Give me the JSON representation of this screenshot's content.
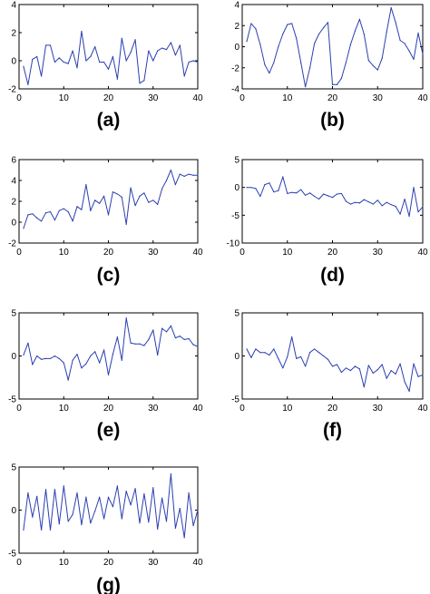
{
  "figure": {
    "line_color": "#2b3fb0",
    "frame_color": "#000000",
    "background": "#ffffff"
  },
  "chart_data": [
    {
      "type": "line",
      "caption": "(a)",
      "x": [
        1,
        2,
        3,
        4,
        5,
        6,
        7,
        8,
        9,
        10,
        11,
        12,
        13,
        14,
        15,
        16,
        17,
        18,
        19,
        20,
        21,
        22,
        23,
        24,
        25,
        26,
        27,
        28,
        29,
        30,
        31,
        32,
        33,
        34,
        35,
        36,
        37,
        38,
        39,
        40
      ],
      "y": [
        -0.4,
        -1.7,
        0.1,
        0.3,
        -1.1,
        1.1,
        1.1,
        -0.1,
        0.2,
        -0.1,
        -0.2,
        0.7,
        -0.5,
        2.1,
        0.0,
        0.3,
        1.0,
        -0.1,
        -0.1,
        -0.6,
        0.3,
        -1.3,
        1.6,
        0.0,
        0.6,
        1.5,
        -1.6,
        -1.4,
        0.7,
        0.0,
        0.7,
        0.9,
        0.8,
        1.3,
        0.4,
        1.1,
        -1.1,
        -0.1,
        0.0,
        -0.1
      ],
      "xlim": [
        0,
        40
      ],
      "ylim": [
        -2,
        4
      ],
      "xticks": [
        "0",
        "10",
        "20",
        "30",
        "40"
      ],
      "yticks": [
        "-2",
        "0",
        "2",
        "4"
      ]
    },
    {
      "type": "line",
      "caption": "(b)",
      "x": [
        1,
        2,
        3,
        4,
        5,
        6,
        7,
        8,
        9,
        10,
        11,
        12,
        13,
        14,
        15,
        16,
        17,
        18,
        19,
        20,
        21,
        22,
        23,
        24,
        25,
        26,
        27,
        28,
        29,
        30,
        31,
        32,
        33,
        34,
        35,
        36,
        37,
        38,
        39,
        40
      ],
      "y": [
        0.5,
        2.2,
        1.7,
        0.2,
        -1.7,
        -2.5,
        -1.5,
        0.0,
        1.2,
        2.1,
        2.2,
        0.8,
        -1.5,
        -3.8,
        -2.0,
        0.3,
        1.2,
        1.8,
        2.3,
        -3.6,
        -3.6,
        -3.0,
        -1.5,
        0.2,
        1.5,
        2.6,
        1.2,
        -1.3,
        -1.8,
        -2.2,
        -1.1,
        1.4,
        3.7,
        2.3,
        0.6,
        0.3,
        -0.4,
        -1.2,
        1.3,
        -0.7
      ],
      "xlim": [
        0,
        40
      ],
      "ylim": [
        -4,
        4
      ],
      "xticks": [
        "0",
        "10",
        "20",
        "30",
        "40"
      ],
      "yticks": [
        "-4",
        "-2",
        "0",
        "2",
        "4"
      ]
    },
    {
      "type": "line",
      "caption": "(c)",
      "x": [
        1,
        2,
        3,
        4,
        5,
        6,
        7,
        8,
        9,
        10,
        11,
        12,
        13,
        14,
        15,
        16,
        17,
        18,
        19,
        20,
        21,
        22,
        23,
        24,
        25,
        26,
        27,
        28,
        29,
        30,
        31,
        32,
        33,
        34,
        35,
        36,
        37,
        38,
        39,
        40
      ],
      "y": [
        -0.6,
        0.7,
        0.8,
        0.4,
        0.1,
        0.9,
        1.0,
        0.2,
        1.1,
        1.3,
        1.0,
        0.1,
        1.5,
        1.2,
        3.6,
        1.1,
        2.1,
        1.8,
        2.5,
        0.7,
        2.9,
        2.7,
        2.4,
        -0.2,
        3.3,
        1.6,
        2.5,
        2.8,
        1.9,
        2.1,
        1.7,
        3.2,
        4.0,
        5.0,
        3.6,
        4.6,
        4.4,
        4.6,
        4.5,
        4.5
      ],
      "xlim": [
        0,
        40
      ],
      "ylim": [
        -2,
        6
      ],
      "xticks": [
        "0",
        "10",
        "20",
        "30",
        "40"
      ],
      "yticks": [
        "-2",
        "0",
        "2",
        "4",
        "6"
      ]
    },
    {
      "type": "line",
      "caption": "(d)",
      "x": [
        1,
        2,
        3,
        4,
        5,
        6,
        7,
        8,
        9,
        10,
        11,
        12,
        13,
        14,
        15,
        16,
        17,
        18,
        19,
        20,
        21,
        22,
        23,
        24,
        25,
        26,
        27,
        28,
        29,
        30,
        31,
        32,
        33,
        34,
        35,
        36,
        37,
        38,
        39,
        40
      ],
      "y": [
        0.0,
        0.0,
        -0.2,
        -1.6,
        0.5,
        0.8,
        -0.8,
        -0.6,
        1.9,
        -1.1,
        -0.9,
        -1.0,
        -0.4,
        -1.4,
        -1.0,
        -1.6,
        -2.1,
        -1.2,
        -1.5,
        -1.8,
        -1.2,
        -1.1,
        -2.5,
        -3.0,
        -2.7,
        -2.8,
        -2.2,
        -2.6,
        -3.0,
        -2.3,
        -3.3,
        -2.7,
        -3.1,
        -3.4,
        -4.8,
        -2.1,
        -5.2,
        0.0,
        -4.4,
        -3.5
      ],
      "xlim": [
        0,
        40
      ],
      "ylim": [
        -10,
        5
      ],
      "xticks": [
        "0",
        "10",
        "20",
        "30",
        "40"
      ],
      "yticks": [
        "-10",
        "-5",
        "0",
        "5"
      ]
    },
    {
      "type": "line",
      "caption": "(e)",
      "x": [
        1,
        2,
        3,
        4,
        5,
        6,
        7,
        8,
        9,
        10,
        11,
        12,
        13,
        14,
        15,
        16,
        17,
        18,
        19,
        20,
        21,
        22,
        23,
        24,
        25,
        26,
        27,
        28,
        29,
        30,
        31,
        32,
        33,
        34,
        35,
        36,
        37,
        38,
        39,
        40
      ],
      "y": [
        0.1,
        1.5,
        -1.0,
        0.0,
        -0.4,
        -0.3,
        -0.3,
        0.0,
        -0.3,
        -0.8,
        -2.8,
        -0.5,
        0.2,
        -1.4,
        -0.9,
        0.0,
        0.5,
        -0.8,
        0.7,
        -2.2,
        0.2,
        2.2,
        -0.5,
        4.4,
        1.5,
        1.4,
        1.4,
        1.2,
        1.9,
        3.0,
        0.1,
        3.2,
        2.8,
        3.5,
        2.1,
        2.3,
        1.9,
        2.0,
        1.3,
        1.1
      ],
      "xlim": [
        0,
        40
      ],
      "ylim": [
        -5,
        5
      ],
      "xticks": [
        "0",
        "10",
        "20",
        "30",
        "40"
      ],
      "yticks": [
        "-5",
        "0",
        "5"
      ]
    },
    {
      "type": "line",
      "caption": "(f)",
      "x": [
        1,
        2,
        3,
        4,
        5,
        6,
        7,
        8,
        9,
        10,
        11,
        12,
        13,
        14,
        15,
        16,
        17,
        18,
        19,
        20,
        21,
        22,
        23,
        24,
        25,
        26,
        27,
        28,
        29,
        30,
        31,
        32,
        33,
        34,
        35,
        36,
        37,
        38,
        39,
        40
      ],
      "y": [
        0.8,
        -0.2,
        0.8,
        0.4,
        0.4,
        0.1,
        0.8,
        -0.3,
        -1.4,
        -0.1,
        2.2,
        -0.3,
        -0.1,
        -1.2,
        0.4,
        0.8,
        0.4,
        0.0,
        -0.4,
        -1.2,
        -1.0,
        -1.9,
        -1.4,
        -1.7,
        -1.2,
        -1.5,
        -3.6,
        -1.1,
        -2.0,
        -1.6,
        -1.0,
        -2.6,
        -1.7,
        -2.1,
        -0.9,
        -3.0,
        -4.1,
        -0.9,
        -2.4,
        -2.2
      ],
      "xlim": [
        0,
        40
      ],
      "ylim": [
        -5,
        5
      ],
      "xticks": [
        "0",
        "10",
        "20",
        "30",
        "40"
      ],
      "yticks": [
        "-5",
        "0",
        "5"
      ]
    },
    {
      "type": "line",
      "caption": "(g)",
      "x": [
        1,
        2,
        3,
        4,
        5,
        6,
        7,
        8,
        9,
        10,
        11,
        12,
        13,
        14,
        15,
        16,
        17,
        18,
        19,
        20,
        21,
        22,
        23,
        24,
        25,
        26,
        27,
        28,
        29,
        30,
        31,
        32,
        33,
        34,
        35,
        36,
        37,
        38,
        39,
        40
      ],
      "y": [
        -2.3,
        2.0,
        -0.8,
        1.6,
        -2.3,
        2.4,
        -2.3,
        2.4,
        -1.6,
        2.8,
        -1.3,
        -0.5,
        2.0,
        -1.7,
        1.5,
        -1.5,
        -0.1,
        1.5,
        -1.0,
        1.5,
        0.4,
        2.8,
        -1.0,
        2.2,
        0.6,
        2.5,
        -1.5,
        1.9,
        -1.4,
        2.6,
        -2.2,
        1.4,
        -1.3,
        4.2,
        -2.1,
        0.2,
        -3.2,
        2.0,
        -1.8,
        0.0
      ],
      "xlim": [
        0,
        40
      ],
      "ylim": [
        -5,
        5
      ],
      "xticks": [
        "0",
        "10",
        "20",
        "30",
        "40"
      ],
      "yticks": [
        "-5",
        "0",
        "5"
      ]
    }
  ]
}
